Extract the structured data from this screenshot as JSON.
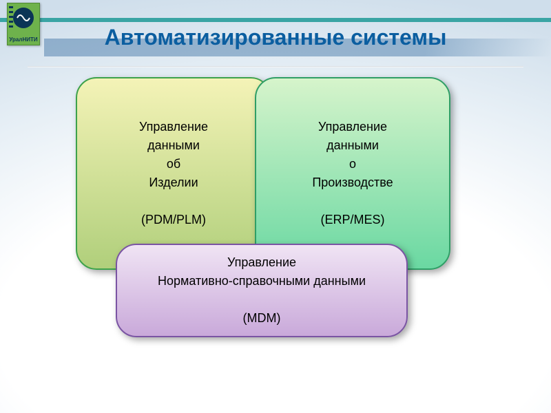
{
  "header": {
    "title": "Автоматизированные системы",
    "title_color": "#0b5ea0",
    "title_fontsize": 32,
    "logo_text": "УралНИТИ"
  },
  "palette": {
    "background_center": "#ffffff",
    "background_edge": "#cfdeeb",
    "teal_strip": "#3aa4a4",
    "navy_strip": "#0b4d8c",
    "logo_bg": "#6eb24c"
  },
  "cards": {
    "left": {
      "lines": [
        "Управление",
        "данными",
        "об",
        "Изделии",
        "",
        "(PDM/PLM)"
      ],
      "fill_top": "#f4f3b7",
      "fill_bottom": "#b0cf7b",
      "border": "#3da24b"
    },
    "right": {
      "lines": [
        "Управление",
        "данными",
        "о",
        "Производстве",
        "",
        "(ERP/MES)"
      ],
      "fill_top": "#d6f4cb",
      "fill_bottom": "#6ad8a2",
      "border": "#2f9e66"
    },
    "bottom": {
      "lines": [
        "Управление",
        "Нормативно-справочными данными",
        "",
        "(MDM)"
      ],
      "fill_top": "#f0e4f4",
      "fill_bottom": "#c9a9da",
      "border": "#7a54a3"
    }
  },
  "layout": {
    "slide_width": 800,
    "slide_height": 600,
    "card_radius": 30,
    "card_fontsize": 18
  }
}
